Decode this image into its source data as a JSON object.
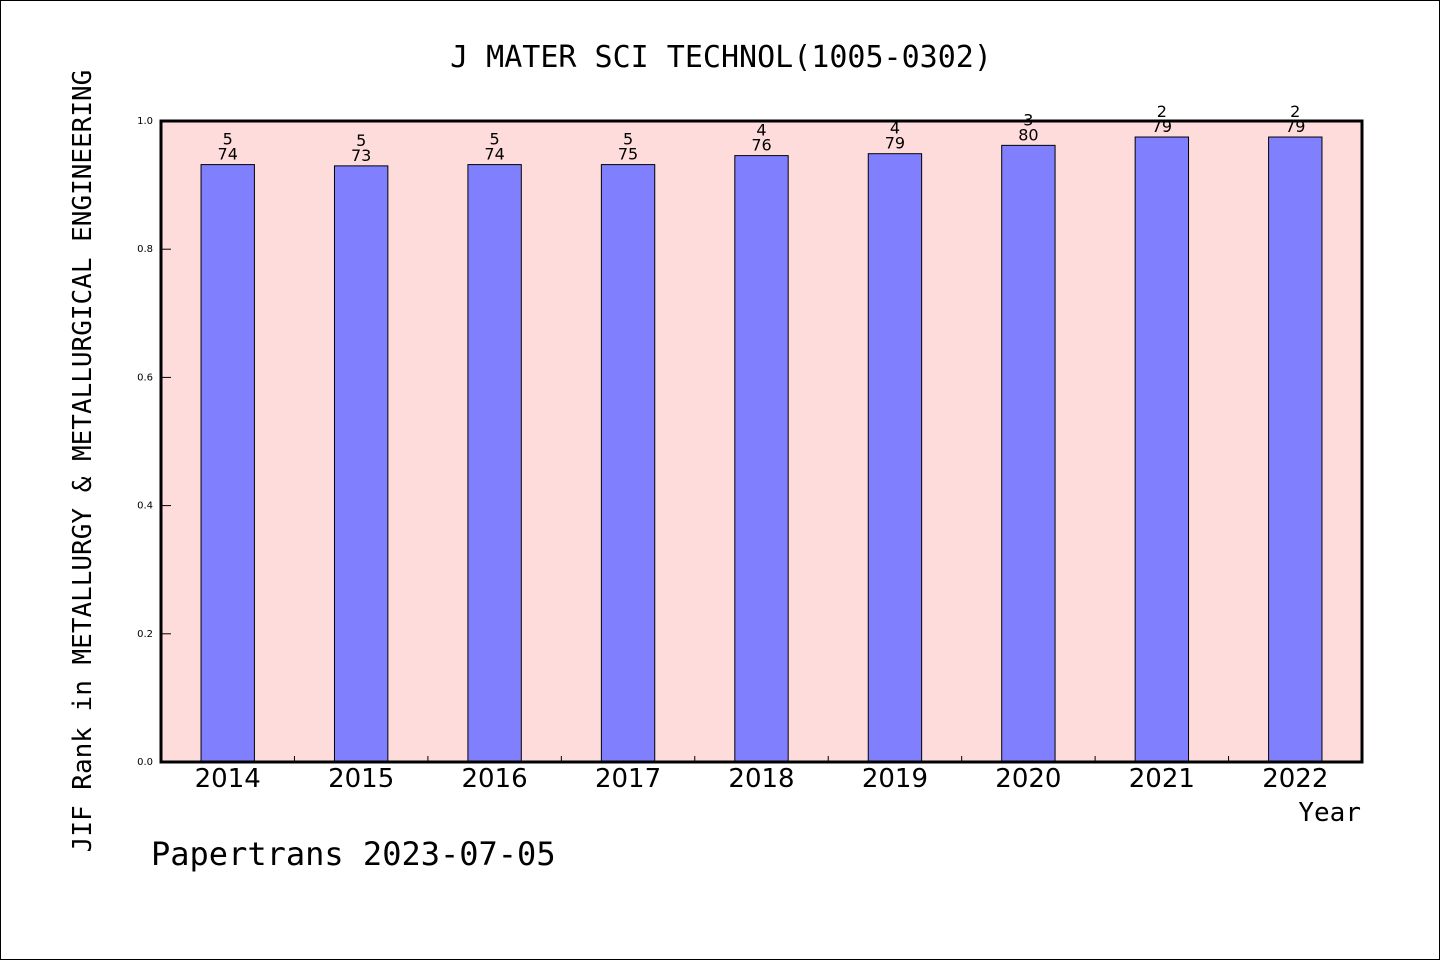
{
  "chart_data": {
    "type": "bar",
    "title": "J MATER SCI TECHNOL(1005-0302)",
    "xlabel": "Year",
    "ylabel": "JIF Rank in METALLURGY & METALLURGICAL ENGINEERING",
    "categories": [
      "2014",
      "2015",
      "2016",
      "2017",
      "2018",
      "2019",
      "2020",
      "2021",
      "2022"
    ],
    "series": [
      {
        "values": [
          0.932,
          0.93,
          0.932,
          0.932,
          0.946,
          0.949,
          0.962,
          0.975,
          0.975
        ]
      }
    ],
    "bar_labels": [
      {
        "rank": "5",
        "total": "74"
      },
      {
        "rank": "5",
        "total": "73"
      },
      {
        "rank": "5",
        "total": "74"
      },
      {
        "rank": "5",
        "total": "75"
      },
      {
        "rank": "4",
        "total": "76"
      },
      {
        "rank": "4",
        "total": "79"
      },
      {
        "rank": "3",
        "total": "80"
      },
      {
        "rank": "2",
        "total": "79"
      },
      {
        "rank": "2",
        "total": "79"
      }
    ],
    "ylim": [
      0,
      1.0
    ],
    "yticks": [
      "0.0",
      "0.2",
      "0.4",
      "0.6",
      "0.8",
      "1.0"
    ],
    "grid": false,
    "colors": {
      "plot_background": "#ffdcdc",
      "bar_fill": "#8080ff",
      "bar_stroke": "#000000"
    }
  },
  "footer": {
    "credit": "Papertrans 2023-07-05"
  }
}
